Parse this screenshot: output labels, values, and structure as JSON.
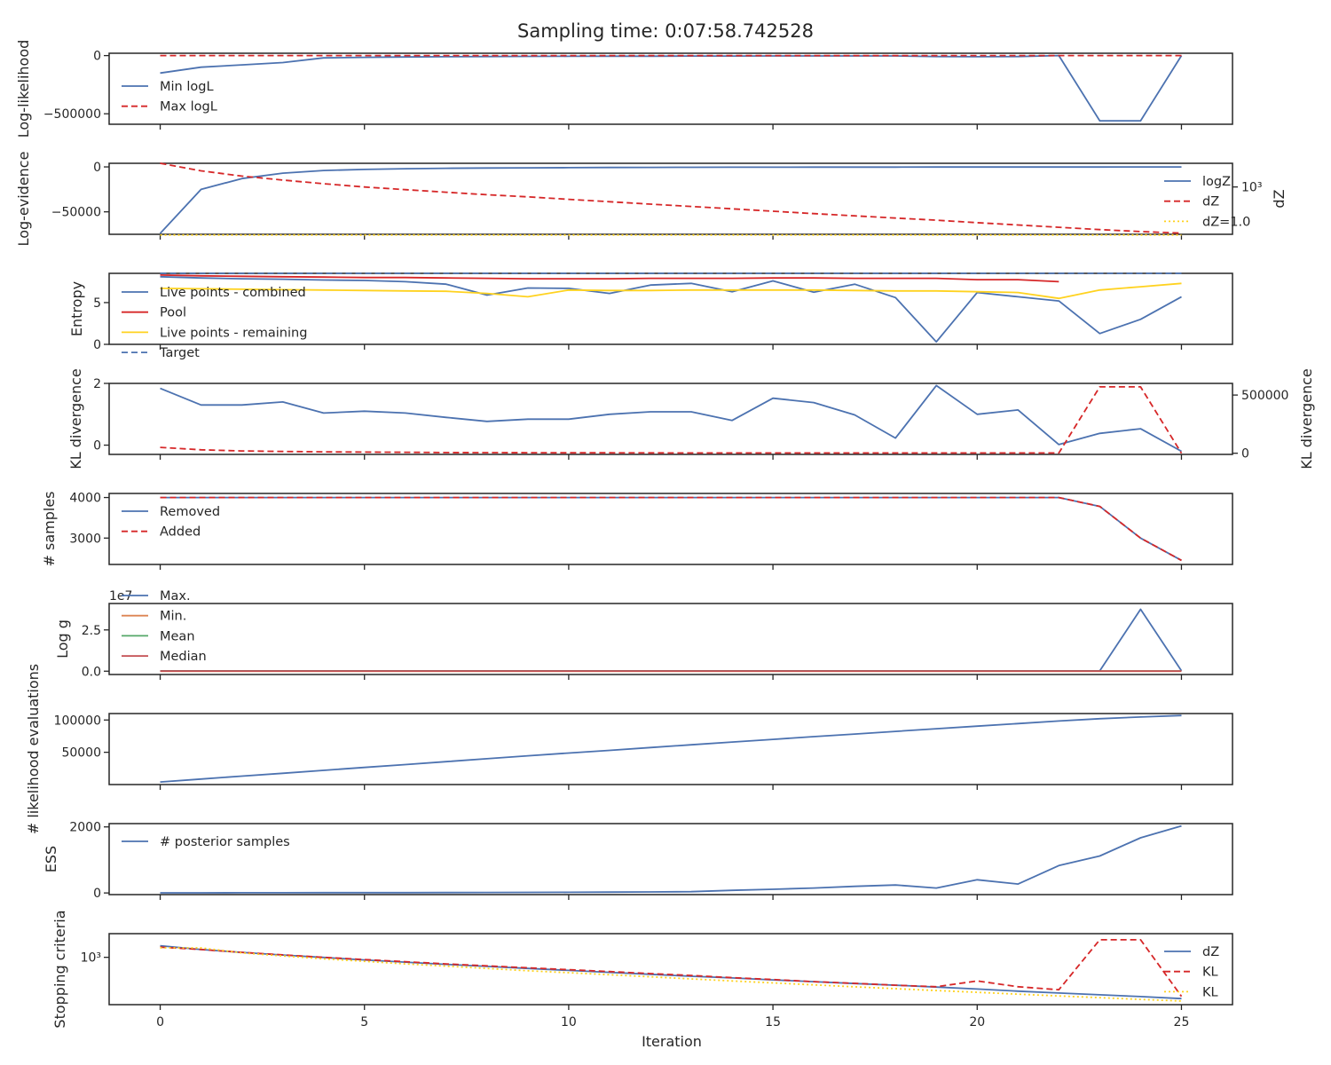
{
  "figure": {
    "title": "Sampling time: 0:07:58.742528",
    "xlabel": "Iteration",
    "x_ticks": [
      0,
      5,
      10,
      15,
      20,
      25
    ],
    "xlim": [
      -1.25,
      26.25
    ]
  },
  "colors": {
    "blue": "#4c72b0",
    "red": "#d62728",
    "yellow": "#ffd21f",
    "orange": "#dd8452",
    "green": "#55a868",
    "crimson": "#c44e52",
    "navy": "#4c72b0"
  },
  "chart_data": [
    {
      "type": "line",
      "ylabel": "Log-likelihood",
      "ylim": [
        -590000,
        20000
      ],
      "yticks": [
        0,
        -500000
      ],
      "ytick_labels": [
        "0",
        "−500000"
      ],
      "legend_position": "center-left",
      "x": [
        0,
        1,
        2,
        3,
        4,
        5,
        6,
        7,
        8,
        9,
        10,
        11,
        12,
        13,
        14,
        15,
        16,
        17,
        18,
        19,
        20,
        21,
        22,
        23,
        24,
        25
      ],
      "series": [
        {
          "name": "Min logL",
          "style": "solid",
          "color": "blue",
          "values": [
            -150000,
            -100000,
            -80000,
            -60000,
            -20000,
            -15000,
            -12000,
            -10000,
            -8000,
            -7000,
            -6000,
            -5000,
            -5000,
            -4000,
            -4000,
            -3000,
            -3000,
            -3000,
            -3000,
            -8000,
            -10000,
            -8000,
            0,
            -560000,
            -560000,
            0
          ]
        },
        {
          "name": "Max logL",
          "style": "dashed",
          "color": "red",
          "values": [
            0,
            0,
            0,
            0,
            0,
            0,
            0,
            0,
            0,
            0,
            0,
            0,
            0,
            0,
            0,
            0,
            0,
            0,
            0,
            0,
            0,
            0,
            0,
            0,
            0,
            0
          ]
        }
      ]
    },
    {
      "type": "line",
      "ylabel": "Log-evidence",
      "ylim": [
        -75000,
        4000
      ],
      "yticks": [
        0,
        -50000
      ],
      "ytick_labels": [
        "0",
        "−50000"
      ],
      "y2label": "dZ",
      "y2scale": "log",
      "y2_tick_label": "10³",
      "legend_position": "right",
      "x": [
        0,
        1,
        2,
        3,
        4,
        5,
        6,
        7,
        8,
        9,
        10,
        11,
        12,
        13,
        14,
        15,
        16,
        17,
        18,
        19,
        20,
        21,
        22,
        23,
        24,
        25
      ],
      "series": [
        {
          "name": "logZ",
          "style": "solid",
          "color": "blue",
          "axis": "left",
          "values": [
            -74000,
            -25000,
            -13000,
            -7000,
            -4000,
            -2800,
            -2000,
            -1500,
            -1200,
            -1000,
            -800,
            -650,
            -550,
            -450,
            -380,
            -320,
            -270,
            -230,
            -200,
            -170,
            -150,
            -130,
            -115,
            -100,
            -90,
            -80
          ]
        },
        {
          "name": "dZ",
          "style": "dashed",
          "color": "red",
          "axis": "right",
          "values": [
            5000,
            3000,
            2100,
            1600,
            1250,
            1000,
            830,
            700,
            590,
            510,
            430,
            365,
            310,
            265,
            225,
            192,
            163,
            140,
            120,
            104,
            88,
            75,
            64,
            55,
            48,
            43
          ]
        },
        {
          "name": "dZ=1.0",
          "style": "dotted",
          "color": "yellow",
          "axis": "right",
          "values": [
            38,
            38,
            38,
            38,
            38,
            38,
            38,
            38,
            38,
            38,
            38,
            38,
            38,
            38,
            38,
            38,
            38,
            38,
            38,
            38,
            38,
            38,
            38,
            38,
            38,
            38
          ]
        }
      ],
      "y2_range_log10": [
        1.6,
        3.7
      ]
    },
    {
      "type": "line",
      "ylabel": "Entropy",
      "ylim": [
        0,
        8.5
      ],
      "yticks": [
        0,
        5
      ],
      "ytick_labels": [
        "0",
        "5"
      ],
      "legend_position": "lower-left",
      "x": [
        0,
        1,
        2,
        3,
        4,
        5,
        6,
        7,
        8,
        9,
        10,
        11,
        12,
        13,
        14,
        15,
        16,
        17,
        18,
        19,
        20,
        21,
        22,
        23,
        24,
        25
      ],
      "series": [
        {
          "name": "Live points - combined",
          "style": "solid",
          "color": "blue",
          "values": [
            8.1,
            7.95,
            7.85,
            7.8,
            7.7,
            7.65,
            7.5,
            7.2,
            5.9,
            6.75,
            6.7,
            6.1,
            7.1,
            7.3,
            6.3,
            7.6,
            6.25,
            7.2,
            5.6,
            0.3,
            6.2,
            5.7,
            5.2,
            1.3,
            3.0,
            5.7
          ]
        },
        {
          "name": "Pool",
          "style": "solid",
          "color": "red",
          "values": [
            8.3,
            8.2,
            8.15,
            8.1,
            8.05,
            8.0,
            8.0,
            7.95,
            7.9,
            7.85,
            7.85,
            7.85,
            7.9,
            7.9,
            7.9,
            7.95,
            7.95,
            7.9,
            7.9,
            7.9,
            7.75,
            7.75,
            7.5,
            null,
            null,
            null
          ]
        },
        {
          "name": "Live points - remaining",
          "style": "solid",
          "color": "yellow",
          "values": [
            6.7,
            6.65,
            6.6,
            6.55,
            6.5,
            6.45,
            6.4,
            6.35,
            6.1,
            5.7,
            6.5,
            6.45,
            6.45,
            6.5,
            6.5,
            6.5,
            6.5,
            6.45,
            6.4,
            6.4,
            6.3,
            6.2,
            5.5,
            6.5,
            6.9,
            7.3
          ]
        },
        {
          "name": "Target",
          "style": "dashed",
          "color": "navy",
          "values": [
            8.5,
            8.5,
            8.5,
            8.5,
            8.5,
            8.5,
            8.5,
            8.5,
            8.5,
            8.5,
            8.5,
            8.5,
            8.5,
            8.5,
            8.5,
            8.5,
            8.5,
            8.5,
            8.5,
            8.5,
            8.5,
            8.5,
            8.5,
            8.5,
            8.5,
            8.5
          ]
        }
      ]
    },
    {
      "type": "line",
      "ylabel": "KL divergence",
      "ylim": [
        -0.3,
        2.0
      ],
      "yticks": [
        0,
        2
      ],
      "ytick_labels": [
        "0",
        "2"
      ],
      "y2label": "KL divergence",
      "y2lim": [
        -10000,
        600000
      ],
      "y2ticks": [
        0,
        500000
      ],
      "y2tick_labels": [
        "0",
        "500000"
      ],
      "x": [
        0,
        1,
        2,
        3,
        4,
        5,
        6,
        7,
        8,
        9,
        10,
        11,
        12,
        13,
        14,
        15,
        16,
        17,
        18,
        19,
        20,
        21,
        22,
        23,
        24,
        25
      ],
      "series": [
        {
          "name": "",
          "style": "solid",
          "color": "blue",
          "axis": "left",
          "values": [
            1.84,
            1.3,
            1.3,
            1.4,
            1.04,
            1.1,
            1.04,
            0.9,
            0.77,
            0.84,
            0.84,
            1.0,
            1.08,
            1.08,
            0.8,
            1.52,
            1.38,
            0.98,
            0.23,
            1.93,
            1.0,
            1.14,
            0.02,
            0.38,
            0.53,
            -0.2
          ]
        },
        {
          "name": "",
          "style": "dashed",
          "color": "red",
          "axis": "right",
          "values": [
            50000,
            30000,
            20000,
            15000,
            12000,
            10000,
            8000,
            6000,
            5000,
            4500,
            4000,
            3500,
            3000,
            2500,
            2000,
            2000,
            2000,
            2000,
            2000,
            2000,
            2000,
            2000,
            2000,
            570000,
            570000,
            0
          ]
        }
      ]
    },
    {
      "type": "line",
      "ylabel": "# samples",
      "ylim": [
        2350,
        4100
      ],
      "yticks": [
        3000,
        4000
      ],
      "ytick_labels": [
        "3000",
        "4000"
      ],
      "legend_position": "upper-left",
      "x": [
        0,
        1,
        2,
        3,
        4,
        5,
        6,
        7,
        8,
        9,
        10,
        11,
        12,
        13,
        14,
        15,
        16,
        17,
        18,
        19,
        20,
        21,
        22,
        23,
        24,
        25
      ],
      "series": [
        {
          "name": "Removed",
          "style": "solid",
          "color": "blue",
          "values": [
            4000,
            4000,
            4000,
            4000,
            4000,
            4000,
            4000,
            4000,
            4000,
            4000,
            4000,
            4000,
            4000,
            4000,
            4000,
            4000,
            4000,
            4000,
            4000,
            4000,
            4000,
            4000,
            4000,
            3780,
            3000,
            2450
          ]
        },
        {
          "name": "Added",
          "style": "dashed",
          "color": "red",
          "values": [
            4000,
            4000,
            4000,
            4000,
            4000,
            4000,
            4000,
            4000,
            4000,
            4000,
            4000,
            4000,
            4000,
            4000,
            4000,
            4000,
            4000,
            4000,
            4000,
            4000,
            4000,
            4000,
            4000,
            3780,
            3000,
            2450
          ]
        }
      ]
    },
    {
      "type": "line",
      "ylabel": "Log g",
      "offset_text": "1e7",
      "ylim": [
        -0.2,
        4.1
      ],
      "yticks": [
        0,
        2.5
      ],
      "ytick_labels": [
        "0.0",
        "2.5"
      ],
      "legend_position": "upper-left",
      "x": [
        0,
        1,
        2,
        3,
        4,
        5,
        6,
        7,
        8,
        9,
        10,
        11,
        12,
        13,
        14,
        15,
        16,
        17,
        18,
        19,
        20,
        21,
        22,
        23,
        24,
        25
      ],
      "series": [
        {
          "name": "Max.",
          "style": "solid",
          "color": "blue",
          "values": [
            0.02,
            0.02,
            0.02,
            0.02,
            0.02,
            0.02,
            0.02,
            0.02,
            0.02,
            0.02,
            0.02,
            0.02,
            0.02,
            0.02,
            0.02,
            0.02,
            0.02,
            0.02,
            0.02,
            0.02,
            0.02,
            0.02,
            0.02,
            0.02,
            3.75,
            0.02
          ]
        },
        {
          "name": "Min.",
          "style": "solid",
          "color": "orange",
          "values": [
            0.0,
            0.0,
            0.0,
            0.0,
            0.0,
            0.0,
            0.0,
            0.0,
            0.0,
            0.0,
            0.0,
            0.0,
            0.0,
            0.0,
            0.0,
            0.0,
            0.0,
            0.0,
            0.0,
            0.0,
            0.0,
            0.0,
            0.0,
            0.0,
            0.0,
            0.0
          ]
        },
        {
          "name": "Mean",
          "style": "solid",
          "color": "green",
          "values": [
            0.01,
            0.01,
            0.01,
            0.01,
            0.01,
            0.01,
            0.01,
            0.01,
            0.01,
            0.01,
            0.01,
            0.01,
            0.01,
            0.01,
            0.01,
            0.01,
            0.01,
            0.01,
            0.01,
            0.01,
            0.01,
            0.01,
            0.01,
            0.01,
            0.01,
            0.01
          ]
        },
        {
          "name": "Median",
          "style": "solid",
          "color": "crimson",
          "values": [
            0.01,
            0.01,
            0.01,
            0.01,
            0.01,
            0.01,
            0.01,
            0.01,
            0.01,
            0.01,
            0.01,
            0.01,
            0.01,
            0.01,
            0.01,
            0.01,
            0.01,
            0.01,
            0.01,
            0.01,
            0.01,
            0.01,
            0.01,
            0.01,
            0.01,
            0.01
          ]
        }
      ]
    },
    {
      "type": "line",
      "ylabel": "# likelihood evaluations",
      "ylim": [
        0,
        110000
      ],
      "yticks": [
        50000,
        100000
      ],
      "ytick_labels": [
        "50000",
        "100000"
      ],
      "x": [
        0,
        1,
        2,
        3,
        4,
        5,
        6,
        7,
        8,
        9,
        10,
        11,
        12,
        13,
        14,
        15,
        16,
        17,
        18,
        19,
        20,
        21,
        22,
        23,
        24,
        25
      ],
      "series": [
        {
          "name": "",
          "style": "solid",
          "color": "blue",
          "values": [
            4000,
            8500,
            13000,
            17500,
            22000,
            26500,
            31000,
            35500,
            40000,
            44500,
            48800,
            53000,
            57300,
            61600,
            65800,
            70000,
            74200,
            78300,
            82400,
            86500,
            90500,
            94500,
            98400,
            102000,
            104700,
            107000
          ]
        }
      ]
    },
    {
      "type": "line",
      "ylabel": "ESS",
      "ylim": [
        -50,
        2100
      ],
      "yticks": [
        0,
        2000
      ],
      "ytick_labels": [
        "0",
        "2000"
      ],
      "legend_position": "upper-left",
      "x": [
        0,
        1,
        2,
        3,
        4,
        5,
        6,
        7,
        8,
        9,
        10,
        11,
        12,
        13,
        14,
        15,
        16,
        17,
        18,
        19,
        20,
        21,
        22,
        23,
        24,
        25
      ],
      "series": [
        {
          "name": "# posterior samples",
          "style": "solid",
          "color": "blue",
          "values": [
            5,
            5,
            6,
            7,
            8,
            9,
            10,
            12,
            14,
            16,
            20,
            25,
            30,
            40,
            80,
            110,
            150,
            200,
            240,
            150,
            400,
            270,
            830,
            1120,
            1670,
            2030
          ]
        }
      ]
    },
    {
      "type": "line",
      "ylabel": "Stopping criteria",
      "yscale": "log",
      "y_tick_label": "10³",
      "ylim_log10": [
        1.6,
        3.7
      ],
      "legend_position": "right",
      "x": [
        0,
        1,
        2,
        3,
        4,
        5,
        6,
        7,
        8,
        9,
        10,
        11,
        12,
        13,
        14,
        15,
        16,
        17,
        18,
        19,
        20,
        21,
        22,
        23,
        24,
        25
      ],
      "series": [
        {
          "name": "dZ",
          "style": "solid",
          "color": "blue",
          "values": [
            2200,
            1700,
            1400,
            1170,
            990,
            840,
            720,
            620,
            540,
            470,
            410,
            360,
            315,
            275,
            245,
            215,
            190,
            168,
            150,
            132,
            115,
            100,
            88,
            78,
            69,
            60
          ]
        },
        {
          "name": "KL",
          "style": "dashed",
          "color": "red",
          "values": [
            2000,
            1700,
            1400,
            1180,
            1000,
            860,
            740,
            640,
            560,
            490,
            430,
            380,
            330,
            290,
            250,
            220,
            190,
            170,
            150,
            135,
            200,
            135,
            110,
            3300,
            3300,
            70
          ]
        },
        {
          "name": "KL",
          "style": "dotted",
          "color": "yellow",
          "values": [
            1900,
            1900,
            1350,
            1100,
            900,
            760,
            640,
            550,
            470,
            400,
            350,
            305,
            265,
            230,
            200,
            175,
            153,
            134,
            118,
            104,
            92,
            81,
            72,
            64,
            57,
            51
          ]
        }
      ]
    }
  ]
}
